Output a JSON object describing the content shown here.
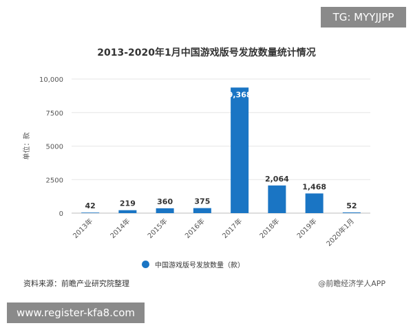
{
  "watermark_top": "TG: MYYJJPP",
  "watermark_bottom": "www.register-kfa8.com",
  "source": "资料来源：前瞻产业研究院整理",
  "credit": "@前瞻经济学人APP",
  "chart_data": {
    "type": "bar",
    "title": "2013-2020年1月中国游戏版号发放数量统计情况",
    "ylabel": "单位：款",
    "xlabel": "",
    "ylim": [
      0,
      10000
    ],
    "yticks": [
      0,
      2500,
      5000,
      7500,
      10000
    ],
    "ytick_labels": [
      "0",
      "2500",
      "5000",
      "7500",
      "10,000"
    ],
    "grid": true,
    "legend": "bottom",
    "categories": [
      "2013年",
      "2014年",
      "2015年",
      "2016年",
      "2017年",
      "2018年",
      "2019年",
      "2020年1月"
    ],
    "series": [
      {
        "name": "中国游戏版号发放数量（款）",
        "values": [
          42,
          219,
          360,
          375,
          9368,
          2064,
          1468,
          52
        ],
        "labels": [
          "42",
          "219",
          "360",
          "375",
          "9,368",
          "2,064",
          "1,468",
          "52"
        ],
        "color": "#1a75c4"
      }
    ]
  }
}
